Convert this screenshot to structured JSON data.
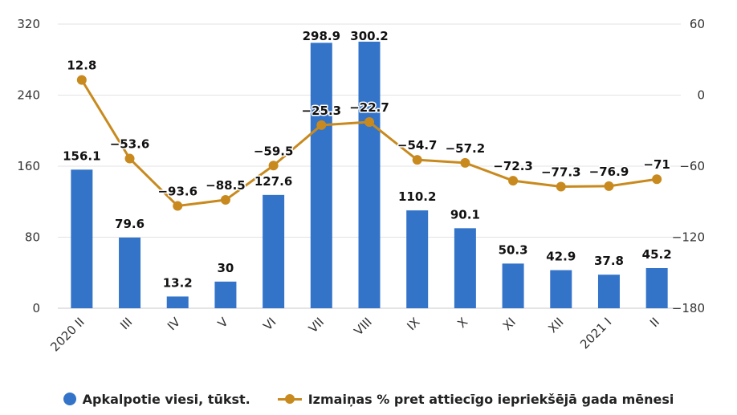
{
  "chart_data": {
    "type": "bar",
    "categories": [
      "2020 II",
      "III",
      "IV",
      "V",
      "VI",
      "VII",
      "VIII",
      "IX",
      "X",
      "XI",
      "XII",
      "2021 I",
      "II"
    ],
    "series": [
      {
        "name": "Apkalpotie viesi, tūkst.",
        "type": "bar",
        "axis": "left",
        "color": "#3374c9",
        "values": [
          156.1,
          79.6,
          13.2,
          30,
          127.6,
          298.9,
          300.2,
          110.2,
          90.1,
          50.3,
          42.9,
          37.8,
          45.2
        ],
        "labels": [
          "156.1",
          "79.6",
          "13.2",
          "30",
          "127.6",
          "298.9",
          "300.2",
          "110.2",
          "90.1",
          "50.3",
          "42.9",
          "37.8",
          "45.2"
        ]
      },
      {
        "name": "Izmaiņas % pret attiecīgo iepriekšējā gada mēnesi",
        "type": "line",
        "axis": "right",
        "color": "#c88a1e",
        "values": [
          12.8,
          -53.6,
          -93.6,
          -88.5,
          -59.5,
          -25.3,
          -22.7,
          -54.7,
          -57.2,
          -72.3,
          -77.3,
          -76.9,
          -71
        ],
        "labels": [
          "12.8",
          "−53.6",
          "−93.6",
          "−88.5",
          "−59.5",
          "−25.3",
          "−22.7",
          "−54.7",
          "−57.2",
          "−72.3",
          "−77.3",
          "−76.9",
          "−71"
        ]
      }
    ],
    "y_left": {
      "min": 0,
      "max": 320,
      "ticks": [
        0,
        80,
        160,
        240,
        320
      ],
      "tick_labels": [
        "0",
        "80",
        "160",
        "240",
        "320"
      ]
    },
    "y_right": {
      "min": -180,
      "max": 60,
      "ticks": [
        -180,
        -120,
        -60,
        0,
        60
      ],
      "tick_labels": [
        "−180",
        "−120",
        "−60",
        "0",
        "60"
      ]
    },
    "grid": true,
    "legend_position": "bottom"
  }
}
